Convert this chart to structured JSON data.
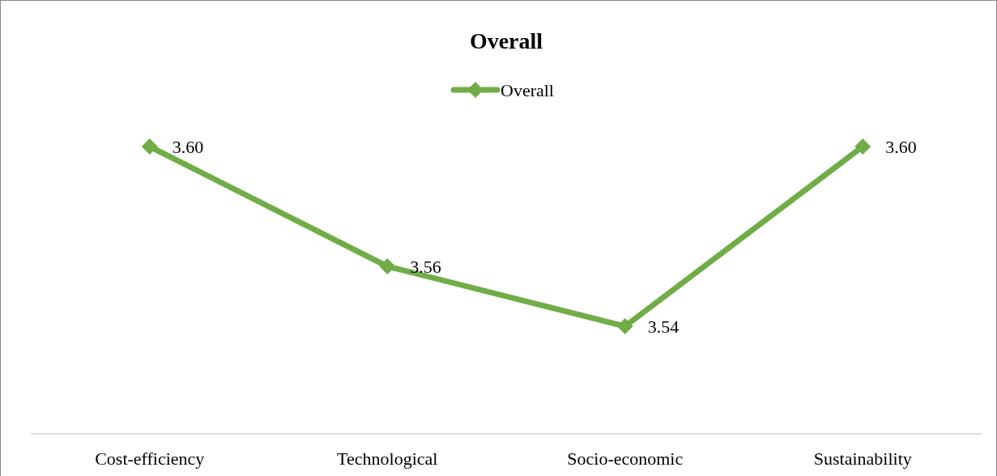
{
  "chart_data": {
    "type": "line",
    "title": "Overall",
    "categories": [
      "Cost-efficiency",
      "Technological",
      "Socio-economic",
      "Sustainability"
    ],
    "series": [
      {
        "name": "Overall",
        "color": "#70ad47",
        "values": [
          3.6,
          3.56,
          3.54,
          3.6
        ],
        "value_labels": [
          "3.60",
          "3.56",
          "3.54",
          "3.60"
        ]
      }
    ],
    "marker": "diamond",
    "legend": "top"
  }
}
